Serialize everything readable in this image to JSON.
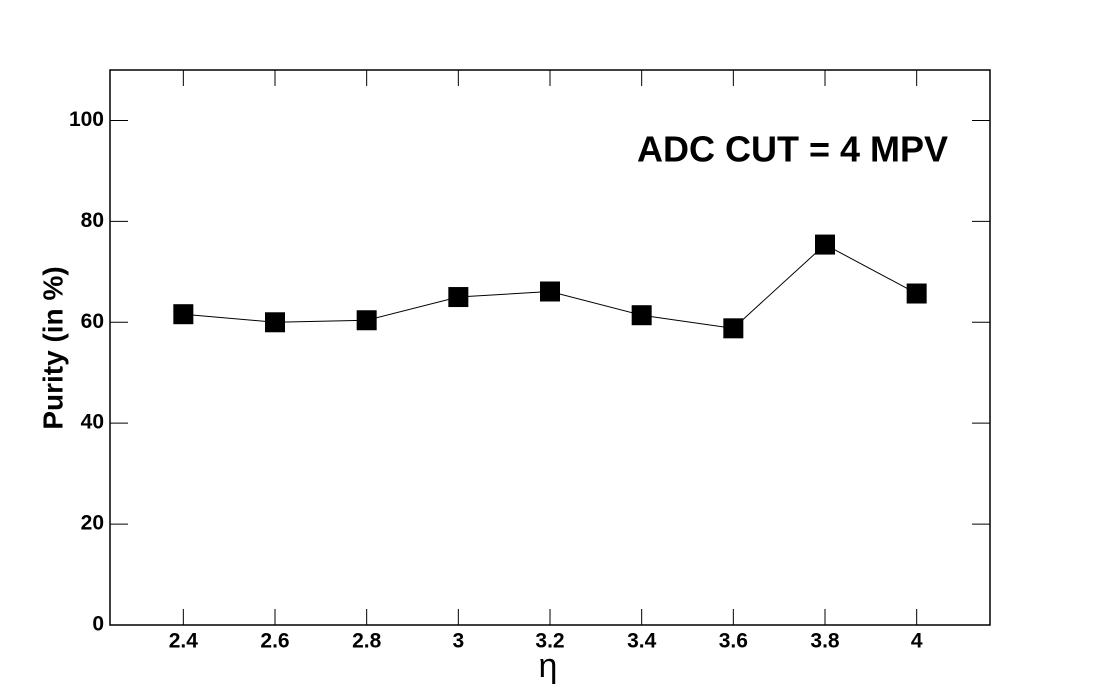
{
  "chart_data": {
    "type": "line",
    "annotation": "ADC CUT = 4 MPV",
    "x_label": "η",
    "y_label": "Purity (in %)",
    "x": [
      2.4,
      2.6,
      2.8,
      3,
      3.2,
      3.4,
      3.6,
      3.8,
      4
    ],
    "series": [
      {
        "color": "#000000",
        "values": [
          61.6,
          60.0,
          60.4,
          65.0,
          66.1,
          61.4,
          58.8,
          75.4,
          65.7
        ]
      }
    ],
    "xlim": [
      2.24,
      4.16
    ],
    "ylim": [
      0,
      110
    ],
    "xticks": [
      2.4,
      2.6,
      2.8,
      3,
      3.2,
      3.4,
      3.6,
      3.8,
      4
    ],
    "yticks": [
      0,
      20,
      40,
      60,
      80,
      100
    ]
  }
}
